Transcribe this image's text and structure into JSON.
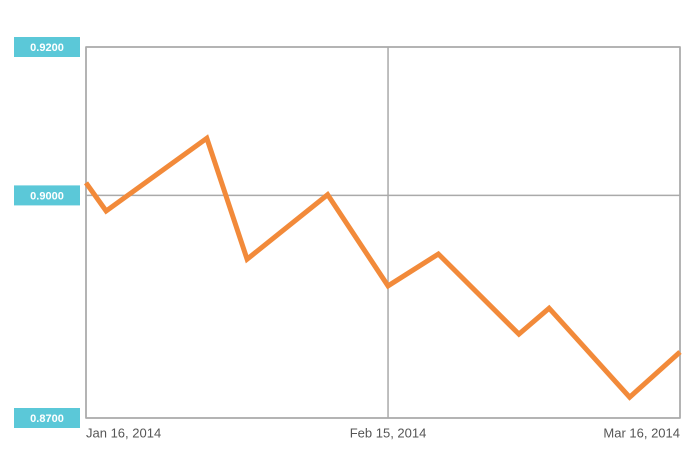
{
  "chart_data": {
    "type": "line",
    "x": [
      "2014-01-16",
      "2014-01-18",
      "2014-01-28",
      "2014-02-01",
      "2014-02-09",
      "2014-02-15",
      "2014-02-20",
      "2014-02-28",
      "2014-03-03",
      "2014-03-11",
      "2014-03-16"
    ],
    "series": [
      {
        "color": "#f28a3a",
        "values": [
          0.9017,
          0.8979,
          0.9077,
          0.8914,
          0.9001,
          0.8878,
          0.8921,
          0.8813,
          0.8848,
          0.8728,
          0.8789
        ]
      }
    ],
    "xlim": [
      "2014-01-16",
      "2014-03-16"
    ],
    "xticks": [
      {
        "value": "2014-01-16",
        "label": "Jan 16, 2014"
      },
      {
        "value": "2014-02-15",
        "label": "Feb 15, 2014"
      },
      {
        "value": "2014-03-16",
        "label": "Mar 16, 2014"
      }
    ],
    "ylim": [
      0.87,
      0.92
    ],
    "yticks": [
      {
        "value": 0.92,
        "label": "0.9200"
      },
      {
        "value": 0.9,
        "label": "0.9000"
      },
      {
        "value": 0.87,
        "label": "0.8700"
      }
    ],
    "grid": true
  }
}
